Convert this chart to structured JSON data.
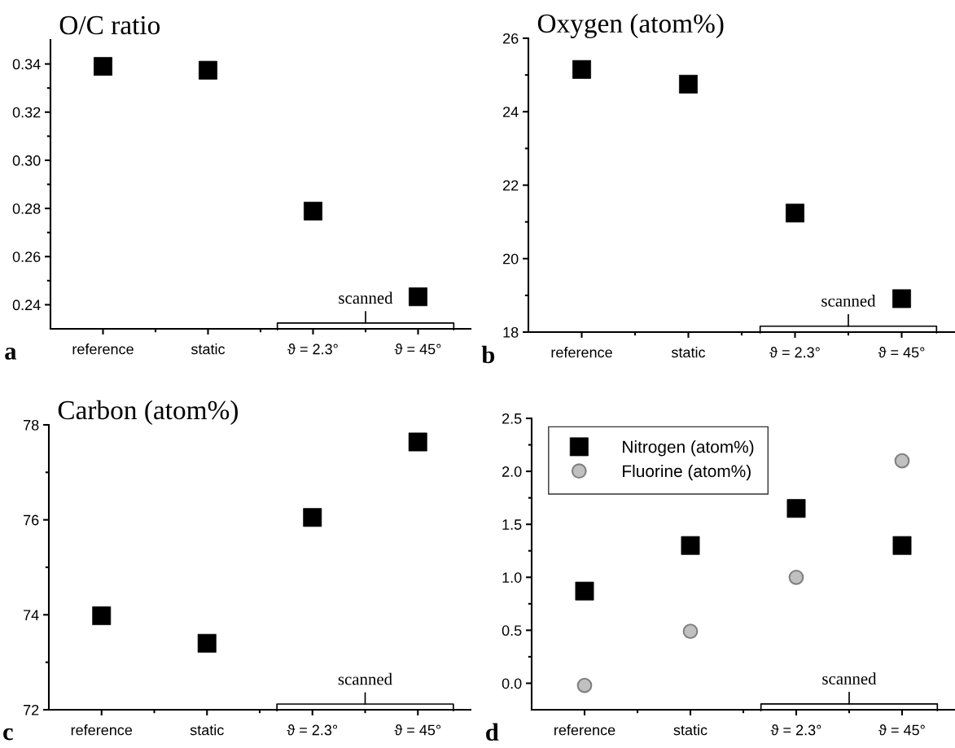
{
  "chart_data": [
    {
      "type": "scatter",
      "title": "O/C ratio",
      "categories": [
        "reference",
        "static",
        "ϑ = 2.3°",
        "ϑ = 45°"
      ],
      "series": [
        {
          "color": "#000000",
          "marker": "square",
          "values": [
            0.339,
            0.3374,
            0.2789,
            0.2433
          ]
        }
      ],
      "ylim": [
        0.23,
        0.35
      ],
      "yticks": [
        0.24,
        0.26,
        0.28,
        {
          "value": 0.3,
          "label": "0.30"
        },
        0.32,
        0.34
      ],
      "annotations": [
        "a",
        "scanned"
      ],
      "grid": false,
      "legend": false
    },
    {
      "type": "scatter",
      "title": "Oxygen (atom%)",
      "categories": [
        "reference",
        "static",
        "ϑ = 2.3°",
        "ϑ = 45°"
      ],
      "series": [
        {
          "color": "#000000",
          "marker": "square",
          "values": [
            25.15,
            24.75,
            21.24,
            18.91
          ]
        }
      ],
      "ylim": [
        18,
        26
      ],
      "yticks": [
        18,
        20,
        22,
        24,
        26
      ],
      "annotations": [
        "b",
        "scanned"
      ],
      "grid": false,
      "legend": false
    },
    {
      "type": "scatter",
      "title": "Carbon (atom%)",
      "categories": [
        "reference",
        "static",
        "ϑ = 2.3°",
        "ϑ = 45°"
      ],
      "series": [
        {
          "color": "#000000",
          "marker": "square",
          "values": [
            73.98,
            73.4,
            76.05,
            77.64
          ]
        }
      ],
      "ylim": [
        72,
        78
      ],
      "yticks": [
        72,
        74,
        76,
        78
      ],
      "annotations": [
        "c",
        "scanned"
      ],
      "grid": false,
      "legend": false
    },
    {
      "type": "scatter",
      "categories": [
        "reference",
        "static",
        "ϑ = 2.3°",
        "ϑ = 45°"
      ],
      "series": [
        {
          "name": "Nitrogen (atom%)",
          "color": "#000000",
          "marker": "square",
          "values": [
            0.87,
            1.3,
            1.65,
            1.3
          ]
        },
        {
          "name": "Fluorine (atom%)",
          "color": "#c0c0c0",
          "marker": "circle",
          "values": [
            -0.02,
            0.49,
            1.0,
            2.1
          ]
        }
      ],
      "ylim": [
        -0.25,
        2.5
      ],
      "yticks": [
        {
          "value": 0.0,
          "label": "0.0"
        },
        0.5,
        {
          "value": 1.0,
          "label": "1.0"
        },
        1.5,
        {
          "value": 2.0,
          "label": "2.0"
        },
        2.5
      ],
      "annotations": [
        "d",
        "scanned"
      ],
      "grid": false,
      "legend": "top left"
    }
  ]
}
